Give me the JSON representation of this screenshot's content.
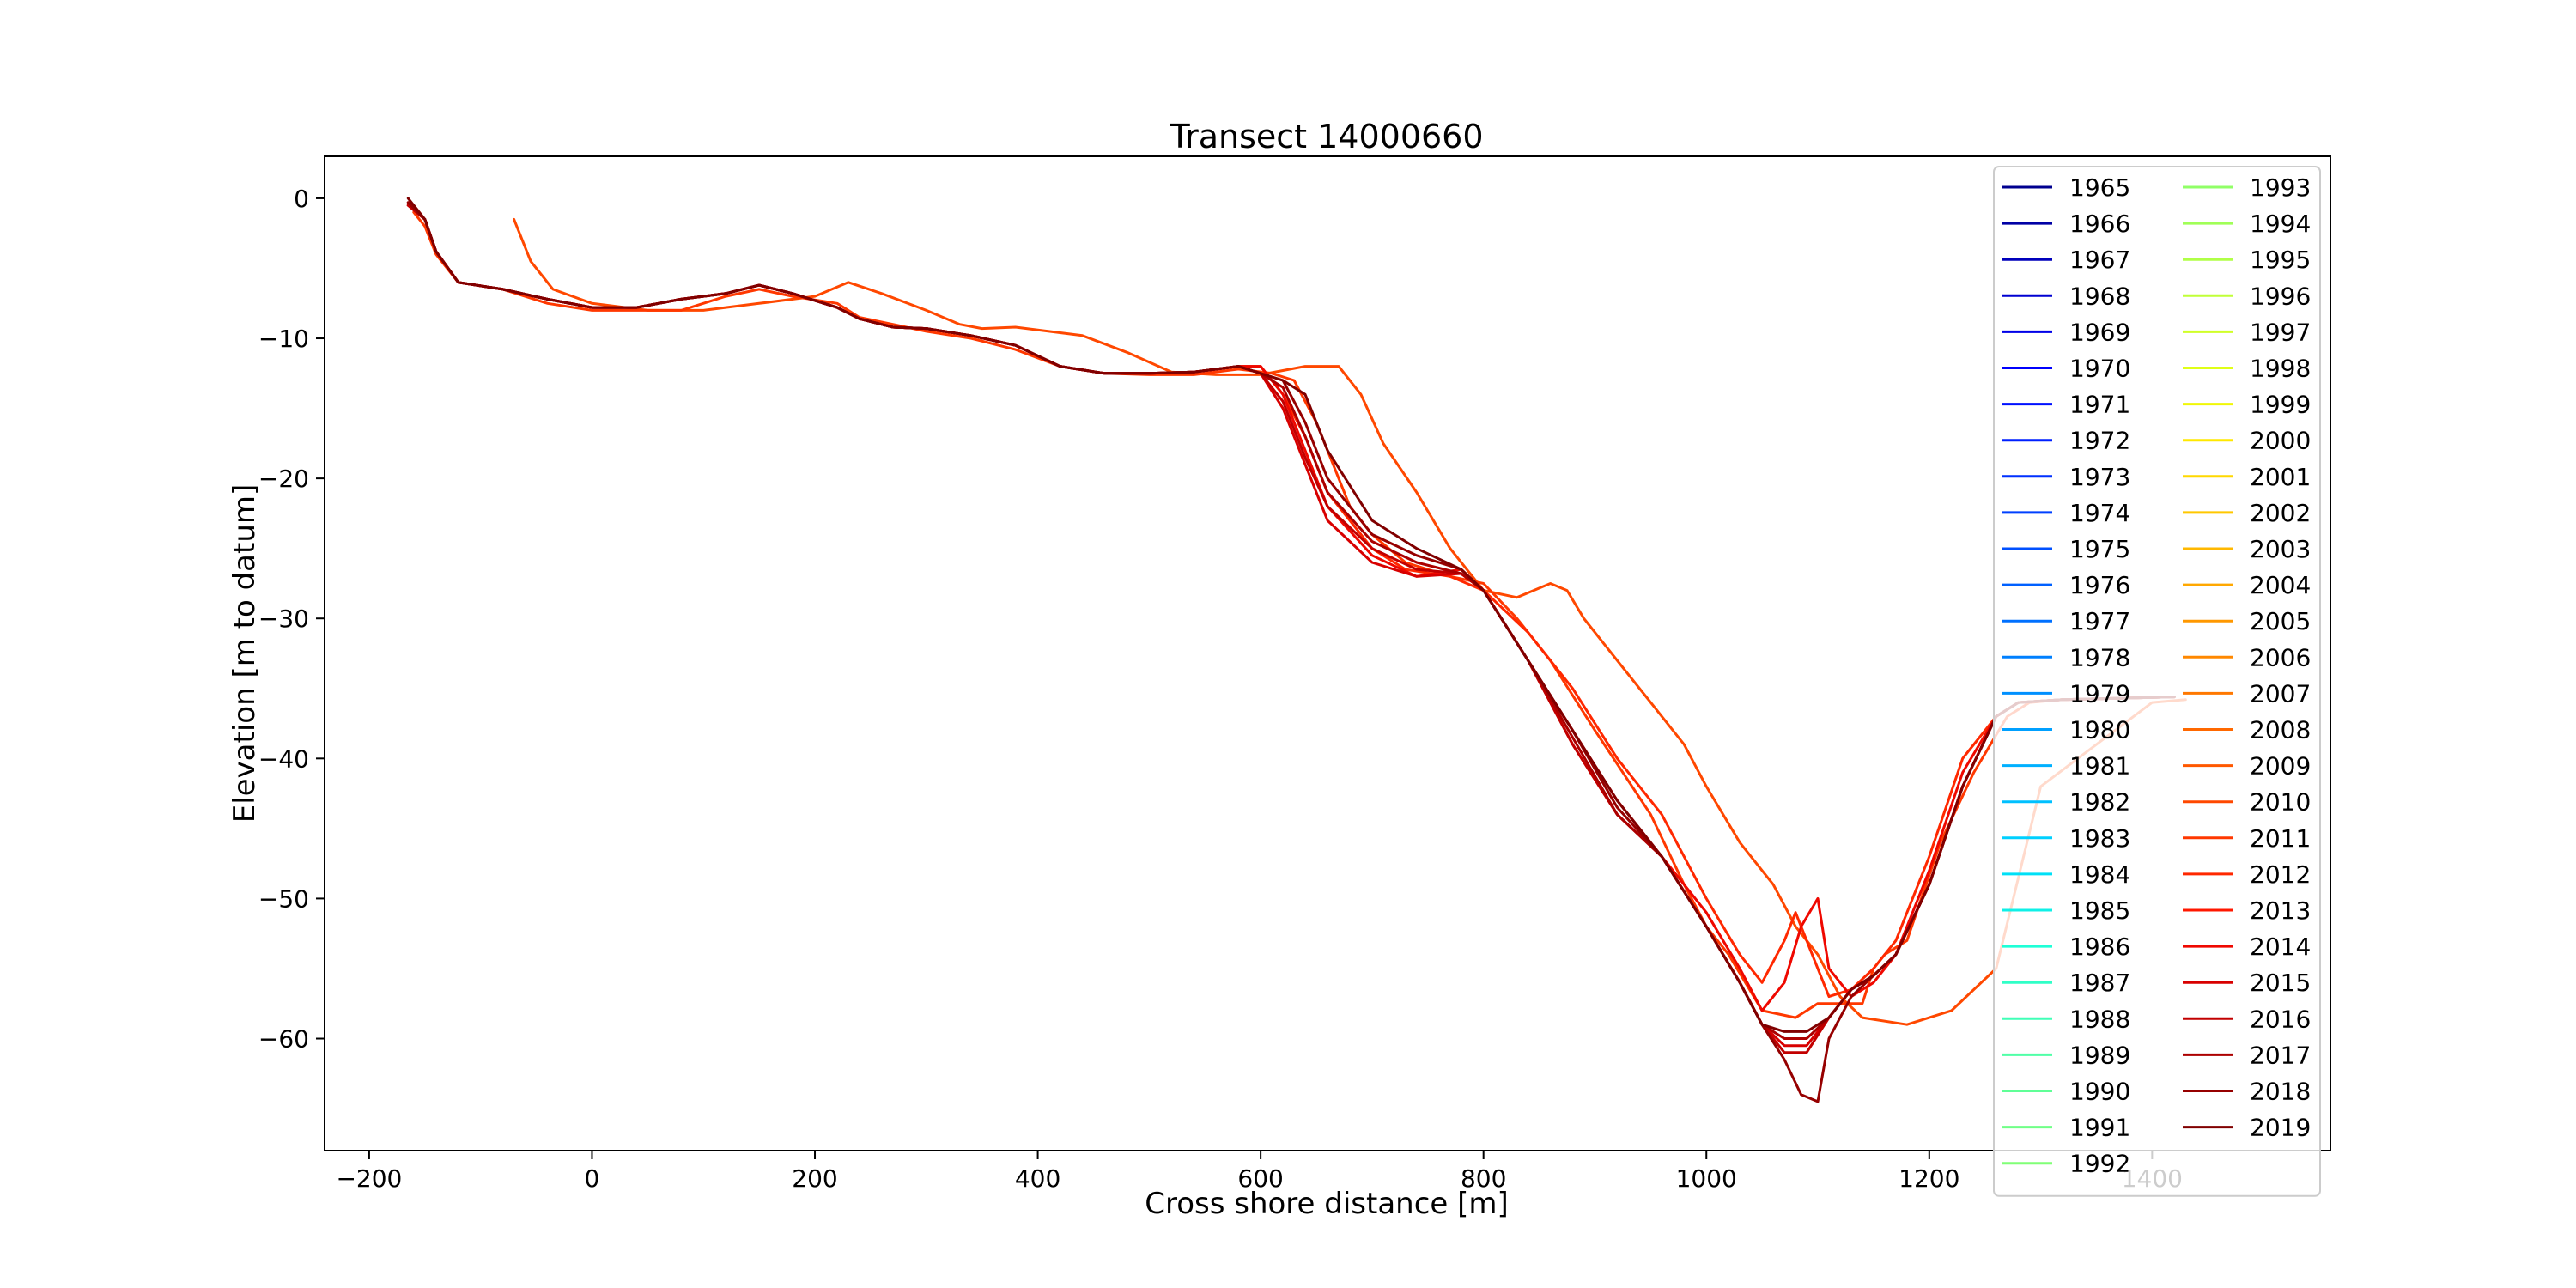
{
  "chart_data": {
    "type": "line",
    "title": "Transect 14000660",
    "xlabel": "Cross shore distance [m]",
    "ylabel": "Elevation [m to datum]",
    "xlim": [
      -240,
      1560
    ],
    "ylim": [
      -68,
      3
    ],
    "xticks": [
      -200,
      0,
      200,
      400,
      600,
      800,
      1000,
      1200,
      1400
    ],
    "yticks": [
      0,
      -10,
      -20,
      -30,
      -40,
      -50,
      -60
    ],
    "grid": false,
    "legend": {
      "placement": "top-right",
      "columns": 2
    },
    "legend_entries": [
      {
        "name": "1965",
        "color": "#00008f"
      },
      {
        "name": "1966",
        "color": "#0000a5"
      },
      {
        "name": "1967",
        "color": "#0000bb"
      },
      {
        "name": "1968",
        "color": "#0000d1"
      },
      {
        "name": "1969",
        "color": "#0000e7"
      },
      {
        "name": "1970",
        "color": "#0000fd"
      },
      {
        "name": "1971",
        "color": "#0010ff"
      },
      {
        "name": "1972",
        "color": "#0020ff"
      },
      {
        "name": "1973",
        "color": "#0030ff"
      },
      {
        "name": "1974",
        "color": "#0040ff"
      },
      {
        "name": "1975",
        "color": "#0050ff"
      },
      {
        "name": "1976",
        "color": "#0060ff"
      },
      {
        "name": "1977",
        "color": "#0070ff"
      },
      {
        "name": "1978",
        "color": "#0080ff"
      },
      {
        "name": "1979",
        "color": "#0090ff"
      },
      {
        "name": "1980",
        "color": "#00a0ff"
      },
      {
        "name": "1981",
        "color": "#00b0ff"
      },
      {
        "name": "1982",
        "color": "#00c0ff"
      },
      {
        "name": "1983",
        "color": "#00d0ff"
      },
      {
        "name": "1984",
        "color": "#00e0f7"
      },
      {
        "name": "1985",
        "color": "#0ff0e7"
      },
      {
        "name": "1986",
        "color": "#1fffd7"
      },
      {
        "name": "1987",
        "color": "#30ffc7"
      },
      {
        "name": "1988",
        "color": "#40ffb7"
      },
      {
        "name": "1989",
        "color": "#50ffa7"
      },
      {
        "name": "1990",
        "color": "#60ff97"
      },
      {
        "name": "1991",
        "color": "#70ff87"
      },
      {
        "name": "1992",
        "color": "#80ff77"
      },
      {
        "name": "1993",
        "color": "#90ff67"
      },
      {
        "name": "1994",
        "color": "#a0ff57"
      },
      {
        "name": "1995",
        "color": "#b0ff47"
      },
      {
        "name": "1996",
        "color": "#c0ff37"
      },
      {
        "name": "1997",
        "color": "#d0ff27"
      },
      {
        "name": "1998",
        "color": "#e0ff17"
      },
      {
        "name": "1999",
        "color": "#f0f707"
      },
      {
        "name": "2000",
        "color": "#ffe800"
      },
      {
        "name": "2001",
        "color": "#ffd800"
      },
      {
        "name": "2002",
        "color": "#ffc800"
      },
      {
        "name": "2003",
        "color": "#ffb800"
      },
      {
        "name": "2004",
        "color": "#ffa800"
      },
      {
        "name": "2005",
        "color": "#ff9800"
      },
      {
        "name": "2006",
        "color": "#ff8800"
      },
      {
        "name": "2007",
        "color": "#ff7800"
      },
      {
        "name": "2008",
        "color": "#ff6800"
      },
      {
        "name": "2009",
        "color": "#ff5800"
      },
      {
        "name": "2010",
        "color": "#ff4800"
      },
      {
        "name": "2011",
        "color": "#ff3800"
      },
      {
        "name": "2012",
        "color": "#ff2800"
      },
      {
        "name": "2013",
        "color": "#ff1800"
      },
      {
        "name": "2014",
        "color": "#ef0800"
      },
      {
        "name": "2015",
        "color": "#d80000"
      },
      {
        "name": "2016",
        "color": "#c20000"
      },
      {
        "name": "2017",
        "color": "#ac0000"
      },
      {
        "name": "2018",
        "color": "#960000"
      },
      {
        "name": "2019",
        "color": "#800000"
      }
    ],
    "series": [
      {
        "color": "#ff4800",
        "x": [
          -70,
          -55,
          -35,
          0,
          50,
          100,
          150,
          200,
          230,
          260,
          300,
          330,
          350,
          380,
          410,
          440,
          480,
          520,
          560,
          600,
          640,
          670,
          690,
          710,
          740,
          770,
          800,
          830,
          860,
          875,
          890,
          920,
          950,
          980,
          1000,
          1030,
          1060,
          1080,
          1100,
          1120,
          1140,
          1180,
          1220,
          1260,
          1300,
          1400,
          1430
        ],
        "y": [
          -1.5,
          -4.5,
          -6.5,
          -7.5,
          -8,
          -8,
          -7.5,
          -7,
          -6,
          -6.8,
          -8,
          -9,
          -9.3,
          -9.2,
          -9.5,
          -9.8,
          -11,
          -12.4,
          -12.6,
          -12.6,
          -12,
          -12,
          -14,
          -17.5,
          -21,
          -25,
          -28,
          -28.5,
          -27.5,
          -28,
          -30,
          -33,
          -36,
          -39,
          -42,
          -46,
          -49,
          -52,
          -54,
          -57,
          -58.5,
          -59,
          -58,
          -55,
          -42,
          -36,
          -35.8
        ]
      },
      {
        "color": "#ff3800",
        "x": [
          -160,
          -150,
          -140,
          -120,
          -80,
          -40,
          0,
          40,
          80,
          120,
          150,
          180,
          220,
          240,
          270,
          300,
          340,
          380,
          420,
          460,
          500,
          540,
          580,
          610,
          630,
          650,
          670,
          680,
          700,
          730,
          770,
          800,
          830,
          860,
          900,
          950,
          980,
          1000,
          1020,
          1050,
          1080,
          1100,
          1120,
          1140,
          1150,
          1160,
          1180,
          1210,
          1240,
          1270,
          1290,
          1320,
          1420
        ],
        "y": [
          -1,
          -2,
          -4,
          -6,
          -6.5,
          -7.5,
          -8,
          -8,
          -8,
          -7,
          -6.5,
          -7,
          -7.5,
          -8.5,
          -9,
          -9.5,
          -10,
          -10.8,
          -12,
          -12.5,
          -12.6,
          -12.6,
          -12.2,
          -12.5,
          -13,
          -16,
          -20,
          -22,
          -24,
          -26,
          -27,
          -27.5,
          -30,
          -33,
          -38,
          -44,
          -49,
          -52,
          -54,
          -58,
          -58.5,
          -57.5,
          -57.5,
          -57.5,
          -55,
          -54,
          -53,
          -46,
          -41,
          -37,
          -36,
          -35.8,
          -35.6
        ]
      },
      {
        "color": "#ff2800",
        "x": [
          -160,
          -150,
          -140,
          -120,
          -80,
          -40,
          0,
          40,
          80,
          120,
          150,
          180,
          220,
          240,
          270,
          300,
          340,
          380,
          420,
          460,
          500,
          540,
          580,
          600,
          620,
          640,
          660,
          700,
          730,
          770,
          800,
          840,
          880,
          920,
          960,
          1000,
          1030,
          1050,
          1070,
          1080,
          1095,
          1110,
          1130,
          1150,
          1170,
          1200,
          1230,
          1260,
          1280,
          1320,
          1420
        ],
        "y": [
          -0.5,
          -1.5,
          -3.8,
          -6,
          -6.5,
          -7.2,
          -7.8,
          -7.8,
          -7.2,
          -6.8,
          -6.2,
          -6.8,
          -7.8,
          -8.6,
          -9.2,
          -9.3,
          -9.8,
          -10.5,
          -12,
          -12.5,
          -12.5,
          -12.4,
          -12,
          -12,
          -14,
          -17,
          -21,
          -25,
          -26.5,
          -27,
          -28,
          -31,
          -35,
          -40,
          -44,
          -50,
          -54,
          -56,
          -53,
          -51,
          -54,
          -57,
          -56.5,
          -55,
          -53,
          -47,
          -40,
          -37,
          -36,
          -35.8,
          -35.6
        ]
      },
      {
        "color": "#ef0800",
        "x": [
          -165,
          -150,
          -140,
          -120,
          -80,
          -40,
          0,
          40,
          80,
          120,
          150,
          180,
          220,
          240,
          270,
          300,
          340,
          380,
          420,
          460,
          500,
          540,
          580,
          600,
          620,
          640,
          660,
          700,
          740,
          780,
          800,
          840,
          880,
          920,
          960,
          1000,
          1030,
          1050,
          1070,
          1085,
          1100,
          1110,
          1130,
          1150,
          1170,
          1200,
          1230,
          1260,
          1280,
          1320,
          1420
        ],
        "y": [
          -0.5,
          -1.5,
          -3.8,
          -6,
          -6.5,
          -7.2,
          -7.8,
          -7.8,
          -7.2,
          -6.8,
          -6.2,
          -6.8,
          -7.8,
          -8.6,
          -9.2,
          -9.3,
          -9.8,
          -10.5,
          -12,
          -12.5,
          -12.5,
          -12.4,
          -12,
          -12,
          -14,
          -18,
          -22,
          -25.5,
          -27,
          -26.5,
          -28,
          -33,
          -38,
          -43,
          -47,
          -51,
          -55,
          -58,
          -56,
          -52,
          -50,
          -55,
          -57,
          -56,
          -54,
          -48,
          -41,
          -37,
          -36,
          -35.8,
          -35.6
        ]
      },
      {
        "color": "#d80000",
        "x": [
          -165,
          -150,
          -140,
          -120,
          -80,
          -40,
          0,
          40,
          80,
          120,
          150,
          180,
          220,
          240,
          270,
          300,
          340,
          380,
          420,
          460,
          500,
          540,
          580,
          600,
          620,
          640,
          660,
          700,
          740,
          780,
          800,
          840,
          880,
          920,
          960,
          1000,
          1030,
          1050,
          1070,
          1090,
          1110,
          1130,
          1150,
          1170,
          1200,
          1230,
          1260,
          1280,
          1320,
          1420
        ],
        "y": [
          -0.5,
          -1.5,
          -3.8,
          -6,
          -6.5,
          -7.2,
          -7.8,
          -7.8,
          -7.2,
          -6.8,
          -6.2,
          -6.8,
          -7.8,
          -8.6,
          -9.2,
          -9.3,
          -9.8,
          -10.5,
          -12,
          -12.5,
          -12.5,
          -12.4,
          -12,
          -12.5,
          -15,
          -19,
          -23,
          -26,
          -27,
          -26.8,
          -28,
          -33,
          -39,
          -44,
          -47,
          -52,
          -56,
          -59,
          -60.5,
          -60.5,
          -58.5,
          -56.5,
          -55.5,
          -54,
          -49,
          -42,
          -37,
          -36,
          -35.8,
          -35.6
        ]
      },
      {
        "color": "#c20000",
        "x": [
          -165,
          -150,
          -140,
          -120,
          -80,
          -40,
          0,
          40,
          80,
          120,
          150,
          180,
          220,
          240,
          270,
          300,
          340,
          380,
          420,
          460,
          500,
          540,
          580,
          600,
          620,
          640,
          660,
          700,
          740,
          780,
          800,
          840,
          880,
          920,
          960,
          1000,
          1030,
          1050,
          1070,
          1090,
          1110,
          1130,
          1150,
          1170,
          1200,
          1230,
          1260,
          1280,
          1320,
          1420
        ],
        "y": [
          -0.5,
          -1.5,
          -3.8,
          -6,
          -6.5,
          -7.2,
          -7.8,
          -7.8,
          -7.2,
          -6.8,
          -6.2,
          -6.8,
          -7.8,
          -8.6,
          -9.2,
          -9.3,
          -9.8,
          -10.5,
          -12,
          -12.5,
          -12.5,
          -12.4,
          -12,
          -12.5,
          -14.5,
          -18.5,
          -22,
          -25,
          -26.5,
          -26.8,
          -28,
          -33,
          -39,
          -44,
          -47,
          -52,
          -56,
          -59,
          -61,
          -61,
          -58.5,
          -56.5,
          -55.5,
          -54,
          -49,
          -42,
          -37,
          -36,
          -35.8,
          -35.6
        ]
      },
      {
        "color": "#ac0000",
        "x": [
          -165,
          -150,
          -140,
          -120,
          -80,
          -40,
          0,
          40,
          80,
          120,
          150,
          180,
          220,
          240,
          270,
          300,
          340,
          380,
          420,
          460,
          500,
          540,
          580,
          600,
          620,
          640,
          660,
          700,
          740,
          780,
          800,
          840,
          880,
          920,
          960,
          1000,
          1030,
          1050,
          1070,
          1090,
          1110,
          1130,
          1150,
          1170,
          1200,
          1230,
          1260,
          1280,
          1320,
          1420
        ],
        "y": [
          -0.3,
          -1.5,
          -3.8,
          -6,
          -6.5,
          -7.2,
          -7.8,
          -7.8,
          -7.2,
          -6.8,
          -6.2,
          -6.8,
          -7.8,
          -8.6,
          -9.2,
          -9.3,
          -9.8,
          -10.5,
          -12,
          -12.5,
          -12.5,
          -12.4,
          -12,
          -12.5,
          -13.5,
          -17,
          -21,
          -24.5,
          -26,
          -26.8,
          -28,
          -33,
          -38.5,
          -44,
          -47,
          -52,
          -56,
          -59,
          -60,
          -60,
          -58.5,
          -56.5,
          -55.5,
          -54,
          -49,
          -42,
          -37,
          -36,
          -35.8,
          -35.6
        ]
      },
      {
        "color": "#960000",
        "x": [
          -165,
          -150,
          -140,
          -120,
          -80,
          -40,
          0,
          40,
          80,
          120,
          150,
          180,
          220,
          240,
          270,
          300,
          340,
          380,
          420,
          460,
          500,
          540,
          580,
          600,
          620,
          640,
          660,
          700,
          740,
          780,
          800,
          840,
          880,
          920,
          960,
          1000,
          1030,
          1050,
          1070,
          1085,
          1100,
          1110,
          1130,
          1150,
          1170,
          1200,
          1230,
          1260,
          1280,
          1320,
          1420
        ],
        "y": [
          -0.3,
          -1.5,
          -3.8,
          -6,
          -6.5,
          -7.2,
          -7.8,
          -7.8,
          -7.2,
          -6.8,
          -6.2,
          -6.8,
          -7.8,
          -8.6,
          -9.2,
          -9.3,
          -9.8,
          -10.5,
          -12,
          -12.5,
          -12.5,
          -12.4,
          -12,
          -12.5,
          -13,
          -16,
          -20,
          -24,
          -25.5,
          -26.5,
          -28,
          -33,
          -38,
          -43.5,
          -47,
          -52,
          -56,
          -59,
          -61.5,
          -64,
          -64.5,
          -60,
          -57,
          -55.5,
          -54,
          -49,
          -42,
          -37,
          -36,
          -35.8,
          -35.6
        ]
      },
      {
        "color": "#800000",
        "x": [
          -165,
          -150,
          -140,
          -120,
          -80,
          -40,
          0,
          40,
          80,
          120,
          150,
          180,
          220,
          240,
          270,
          300,
          340,
          380,
          420,
          460,
          500,
          540,
          580,
          600,
          620,
          640,
          660,
          700,
          740,
          780,
          800,
          840,
          880,
          920,
          960,
          1000,
          1030,
          1050,
          1070,
          1090,
          1110,
          1130,
          1150,
          1170,
          1200,
          1230,
          1260,
          1280,
          1320,
          1420
        ],
        "y": [
          0,
          -1.5,
          -3.8,
          -6,
          -6.5,
          -7.2,
          -7.8,
          -7.8,
          -7.2,
          -6.8,
          -6.2,
          -6.8,
          -7.8,
          -8.6,
          -9.2,
          -9.3,
          -9.8,
          -10.5,
          -12,
          -12.5,
          -12.5,
          -12.4,
          -12,
          -12.5,
          -13,
          -14,
          -18,
          -23,
          -25,
          -26.5,
          -28,
          -33,
          -38,
          -43,
          -47,
          -52,
          -56,
          -59,
          -59.5,
          -59.5,
          -58.5,
          -56.5,
          -55.5,
          -54,
          -49,
          -42,
          -37,
          -36,
          -35.8,
          -35.6
        ]
      }
    ]
  }
}
